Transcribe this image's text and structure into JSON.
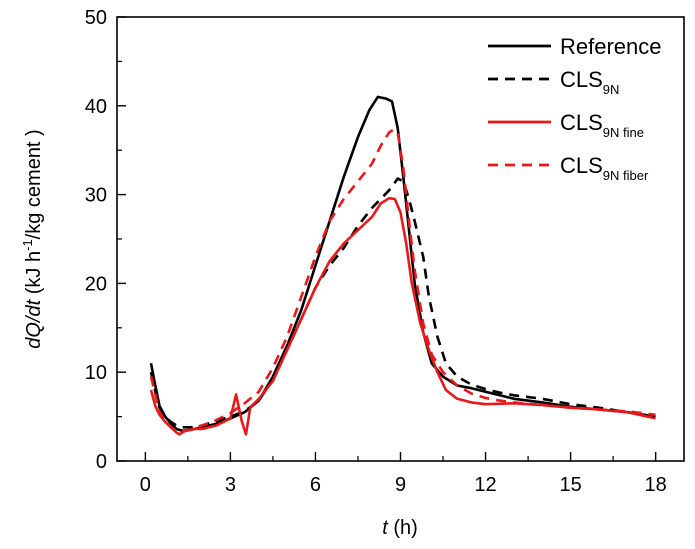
{
  "chart_data": {
    "type": "line",
    "xlabel": {
      "italic": "t",
      "rest": " (h)"
    },
    "ylabel": {
      "italic": "dQ/dt",
      "rest": " (kJ h",
      "sup": "-1",
      "after": "/kg cement )"
    },
    "xlim": [
      -1,
      19
    ],
    "ylim": [
      0,
      50
    ],
    "xticks": [
      "0",
      "3",
      "6",
      "9",
      "12",
      "15",
      "18"
    ],
    "yticks": [
      "0",
      "10",
      "20",
      "30",
      "40",
      "50"
    ],
    "legend_position": "top-right",
    "colors": {
      "black": "#000000",
      "red": "#e8191b"
    },
    "series": [
      {
        "name": "Reference",
        "legend_main": "Reference",
        "legend_sub": "",
        "color": "#000000",
        "dash": "solid",
        "x": [
          0.2,
          0.35,
          0.5,
          0.7,
          0.9,
          1.1,
          1.3,
          1.6,
          2.0,
          2.5,
          3.0,
          3.5,
          4.0,
          4.5,
          5.0,
          5.5,
          6.0,
          6.5,
          7.0,
          7.5,
          7.9,
          8.2,
          8.5,
          8.7,
          8.9,
          9.1,
          9.3,
          9.5,
          9.8,
          10.1,
          10.5,
          11.0,
          11.5,
          12.0,
          12.5,
          13.0,
          14.0,
          15.0,
          16.0,
          17.0,
          18.0
        ],
        "y": [
          11,
          8.5,
          6.2,
          5,
          4.2,
          3.6,
          3.4,
          3.5,
          3.8,
          4.2,
          4.8,
          5.5,
          6.8,
          9.5,
          13,
          17,
          22,
          27,
          32,
          36.5,
          39.5,
          41,
          40.8,
          40.5,
          37.5,
          32,
          26,
          20,
          14.5,
          11,
          9.5,
          8.5,
          8.2,
          7.8,
          7.4,
          7.0,
          6.6,
          6.1,
          5.8,
          5.5,
          5.0
        ]
      },
      {
        "name": "CLS9N",
        "legend_main": "CLS",
        "legend_sub": "9N",
        "color": "#000000",
        "dash": "dashed",
        "x": [
          0.2,
          0.35,
          0.5,
          0.7,
          0.9,
          1.1,
          1.3,
          1.6,
          2.0,
          2.5,
          3.0,
          3.5,
          4.0,
          4.5,
          5.0,
          5.5,
          6.0,
          6.5,
          7.0,
          7.5,
          8.0,
          8.3,
          8.6,
          8.9,
          9.1,
          9.3,
          9.5,
          9.8,
          10.0,
          10.3,
          10.6,
          11.0,
          11.5,
          12.0,
          12.5,
          13.0,
          14.0,
          15.0,
          16.0,
          17.0,
          18.0
        ],
        "y": [
          10,
          7.8,
          6,
          5,
          4.4,
          4.0,
          3.8,
          3.8,
          4.0,
          4.5,
          5.0,
          5.6,
          6.8,
          9.2,
          12.5,
          16,
          19.5,
          22,
          24,
          26.5,
          28.5,
          29.5,
          30.5,
          31.8,
          31.5,
          29.5,
          27,
          23,
          18.5,
          14,
          11,
          9.5,
          8.6,
          8.1,
          7.7,
          7.4,
          7.0,
          6.4,
          6.0,
          5.5,
          5.0
        ]
      },
      {
        "name": "CLS9N fine",
        "legend_main": "CLS",
        "legend_sub": "9N fine",
        "color": "#e8191b",
        "dash": "solid",
        "x": [
          0.2,
          0.35,
          0.5,
          0.7,
          0.9,
          1.1,
          1.2,
          1.4,
          1.7,
          2.0,
          2.5,
          3.0,
          3.2,
          3.4,
          3.55,
          3.7,
          4.0,
          4.5,
          5.0,
          5.5,
          6.0,
          6.5,
          7.0,
          7.5,
          8.0,
          8.3,
          8.6,
          8.8,
          9.0,
          9.2,
          9.4,
          9.7,
          10.0,
          10.3,
          10.6,
          11.0,
          11.5,
          12.0,
          13.0,
          14.0,
          15.0,
          16.0,
          17.0,
          18.0
        ],
        "y": [
          8,
          6.2,
          5.2,
          4.4,
          3.8,
          3.2,
          3.0,
          3.4,
          3.6,
          3.6,
          4.0,
          4.8,
          7.5,
          4.5,
          3.0,
          6.0,
          7.0,
          9.0,
          12.5,
          16,
          19.5,
          22.5,
          24.5,
          26.0,
          27.5,
          29.0,
          29.6,
          29.5,
          28.0,
          24.5,
          20.0,
          15.5,
          12.5,
          10.0,
          8.0,
          7.0,
          6.6,
          6.4,
          6.5,
          6.3,
          6.0,
          5.8,
          5.5,
          4.8
        ]
      },
      {
        "name": "CLS9N fiber",
        "legend_main": "CLS",
        "legend_sub": "9N fiber",
        "color": "#e8191b",
        "dash": "dashed",
        "x": [
          0.2,
          0.35,
          0.5,
          0.7,
          0.9,
          1.1,
          1.3,
          1.6,
          2.0,
          2.5,
          3.0,
          3.5,
          4.0,
          4.5,
          5.0,
          5.5,
          6.0,
          6.5,
          7.0,
          7.5,
          8.0,
          8.3,
          8.6,
          8.75,
          8.9,
          9.1,
          9.3,
          9.5,
          9.8,
          10.1,
          10.5,
          11.0,
          11.5,
          12.0,
          12.5,
          13.0,
          14.0,
          15.0,
          16.0,
          17.0,
          18.0
        ],
        "y": [
          9.5,
          7.5,
          5.5,
          4.5,
          3.8,
          3.4,
          3.3,
          3.5,
          4.0,
          4.6,
          5.4,
          6.5,
          7.8,
          10.5,
          14,
          18.5,
          23,
          27,
          29.5,
          31.5,
          33.5,
          35.5,
          37.0,
          37.3,
          37.0,
          33.0,
          27.0,
          21.5,
          15.5,
          12.0,
          10.0,
          8.5,
          7.6,
          7.1,
          6.8,
          6.6,
          6.3,
          6.0,
          5.8,
          5.6,
          5.2
        ]
      }
    ]
  }
}
